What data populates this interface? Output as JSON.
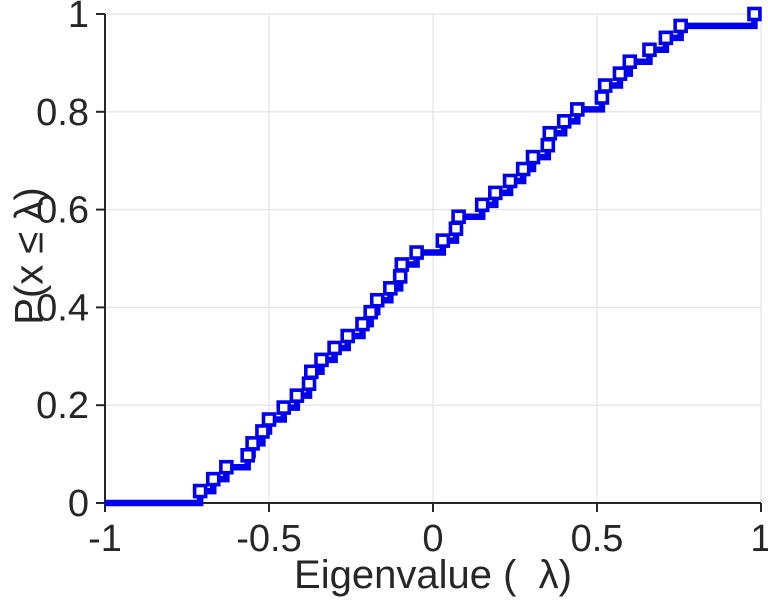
{
  "chart_data": {
    "type": "line",
    "subtype": "ecdf-stairs",
    "title": "",
    "xlabel": "Eigenvalue (  λ)",
    "ylabel": "P(x ≤ λ)",
    "xlim": [
      -1,
      1
    ],
    "ylim": [
      0,
      1
    ],
    "xticks": [
      -1,
      -0.5,
      0,
      0.5,
      1
    ],
    "xtick_labels": [
      "-1",
      "-0.5",
      "0",
      "0.5",
      "1"
    ],
    "yticks": [
      0,
      0.2,
      0.4,
      0.6,
      0.8,
      1
    ],
    "ytick_labels": [
      "0",
      "0.2",
      "0.4",
      "0.6",
      "0.8",
      "1"
    ],
    "grid": true,
    "legend": "none",
    "line_color": "#0000ee",
    "marker": "hollow-square",
    "axis_color": "#262626",
    "grid_color": "#e6e6e6",
    "cdf_start_x": -1,
    "eigenvalues": [
      -0.71,
      -0.67,
      -0.63,
      -0.565,
      -0.55,
      -0.52,
      -0.5,
      -0.455,
      -0.415,
      -0.378,
      -0.371,
      -0.34,
      -0.3,
      -0.26,
      -0.215,
      -0.19,
      -0.17,
      -0.13,
      -0.1,
      -0.095,
      -0.05,
      0.03,
      0.07,
      0.078,
      0.15,
      0.19,
      0.235,
      0.275,
      0.305,
      0.35,
      0.356,
      0.4,
      0.44,
      0.515,
      0.525,
      0.57,
      0.6,
      0.66,
      0.71,
      0.755,
      0.98
    ]
  }
}
